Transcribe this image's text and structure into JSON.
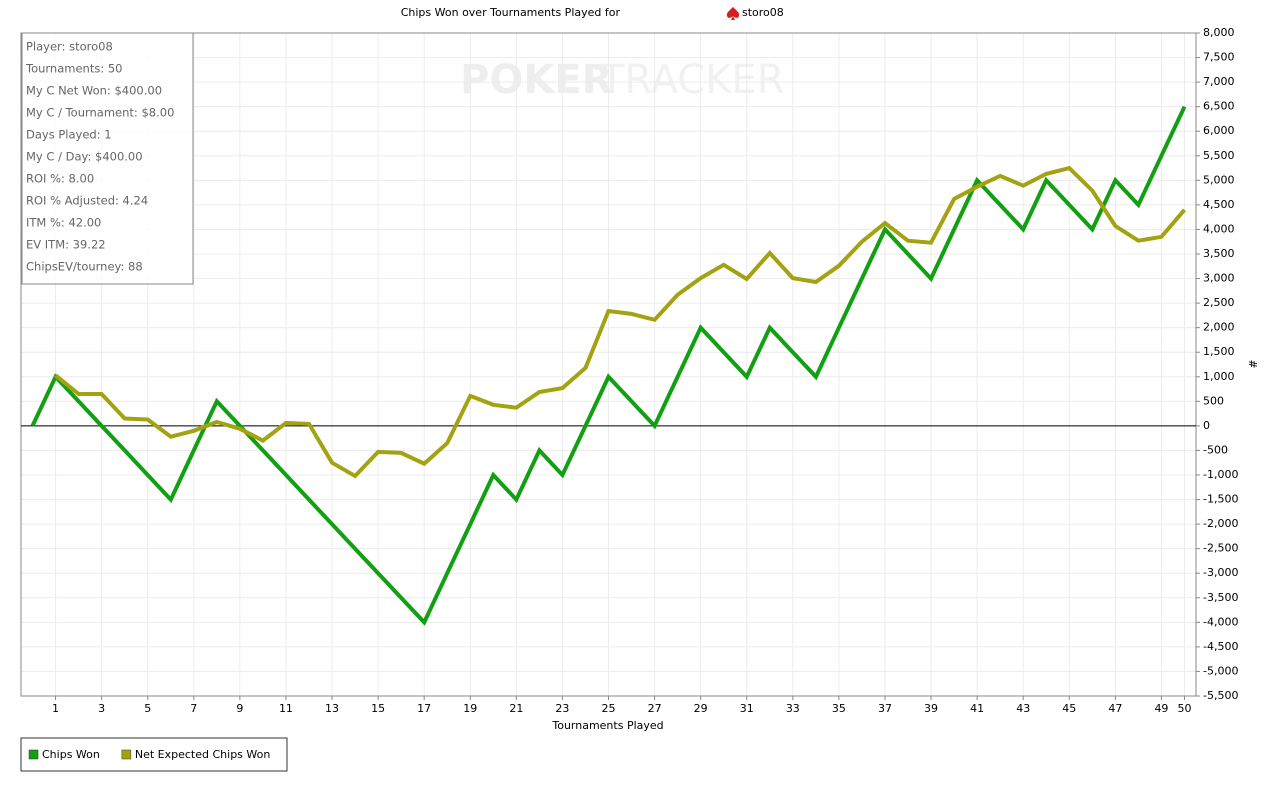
{
  "chart_data": {
    "type": "line",
    "title": "Chips Won over Tournaments Played for",
    "player": "storo08",
    "watermark": [
      "POKER",
      "TRACKER"
    ],
    "x_label": "Tournaments Played",
    "y_label": "#",
    "x": [
      0,
      1,
      2,
      3,
      4,
      5,
      6,
      7,
      8,
      9,
      10,
      11,
      12,
      13,
      14,
      15,
      16,
      17,
      18,
      19,
      20,
      21,
      22,
      23,
      24,
      25,
      26,
      27,
      28,
      29,
      30,
      31,
      32,
      33,
      34,
      35,
      36,
      37,
      38,
      39,
      40,
      41,
      42,
      43,
      44,
      45,
      46,
      47,
      48,
      49,
      50
    ],
    "series": [
      {
        "name": "Chips Won",
        "color": "#12a012",
        "values": [
          0,
          1000,
          500,
          0,
          -500,
          -1000,
          -1500,
          -500,
          500,
          0,
          -500,
          -1000,
          -1500,
          -2000,
          -2500,
          -3000,
          -3500,
          -4000,
          -3000,
          -2000,
          -1000,
          -1500,
          -500,
          -1000,
          0,
          1000,
          500,
          0,
          1000,
          2000,
          1500,
          1000,
          2000,
          1500,
          1000,
          2000,
          3000,
          4000,
          3500,
          3000,
          4000,
          5000,
          4500,
          4000,
          5000,
          4500,
          4000,
          5000,
          4500,
          5500,
          6500
        ]
      },
      {
        "name": "Net Expected Chips Won",
        "color": "#a3a312",
        "values": [
          null,
          1030,
          650,
          650,
          150,
          130,
          -220,
          -100,
          80,
          -60,
          -300,
          60,
          40,
          -750,
          -1020,
          -530,
          -550,
          -770,
          -350,
          610,
          430,
          370,
          690,
          770,
          1180,
          2340,
          2280,
          2160,
          2670,
          3010,
          3280,
          2990,
          3520,
          3010,
          2930,
          3260,
          3750,
          4130,
          3770,
          3730,
          4620,
          4870,
          5090,
          4890,
          5130,
          5250,
          4790,
          4070,
          3770,
          3850,
          4400
        ]
      }
    ],
    "xlim": [
      -0.5,
      50.5
    ],
    "xticks": [
      1,
      3,
      5,
      7,
      9,
      11,
      13,
      15,
      17,
      19,
      21,
      23,
      25,
      27,
      29,
      31,
      33,
      35,
      37,
      39,
      41,
      43,
      45,
      47,
      49,
      50
    ],
    "ylim": [
      -5500,
      8000
    ],
    "yticks": [
      {
        "value": -5500,
        "label": "-5,500"
      },
      {
        "value": -5000,
        "label": "-5,000"
      },
      {
        "value": -4500,
        "label": "-4,500"
      },
      {
        "value": -4000,
        "label": "-4,000"
      },
      {
        "value": -3500,
        "label": "-3,500"
      },
      {
        "value": -3000,
        "label": "-3,000"
      },
      {
        "value": -2500,
        "label": "-2,500"
      },
      {
        "value": -2000,
        "label": "-2,000"
      },
      {
        "value": -1500,
        "label": "-1,500"
      },
      {
        "value": -1000,
        "label": "-1,000"
      },
      -500,
      0,
      500,
      {
        "value": 1000,
        "label": "1,000"
      },
      {
        "value": 1500,
        "label": "1,500"
      },
      {
        "value": 2000,
        "label": "2,000"
      },
      {
        "value": 2500,
        "label": "2,500"
      },
      {
        "value": 3000,
        "label": "3,000"
      },
      {
        "value": 3500,
        "label": "3,500"
      },
      {
        "value": 4000,
        "label": "4,000"
      },
      {
        "value": 4500,
        "label": "4,500"
      },
      {
        "value": 5000,
        "label": "5,000"
      },
      {
        "value": 5500,
        "label": "5,500"
      },
      {
        "value": 6000,
        "label": "6,000"
      },
      {
        "value": 6500,
        "label": "6,500"
      },
      {
        "value": 7000,
        "label": "7,000"
      },
      {
        "value": 7500,
        "label": "7,500"
      },
      {
        "value": 8000,
        "label": "8,000"
      }
    ],
    "grid": true,
    "legend": "bottom-left",
    "annotations": [
      "Player: storo08",
      "Tournaments: 50",
      "My C Net Won: $400.00",
      "My C / Tournament: $8.00",
      "Days Played: 1",
      "My C / Day: $400.00",
      "ROI %: 8.00",
      "ROI % Adjusted: 4.24",
      "ITM %: 42.00",
      "EV ITM: 39.22",
      "ChipsEV/tourney: 88"
    ]
  }
}
